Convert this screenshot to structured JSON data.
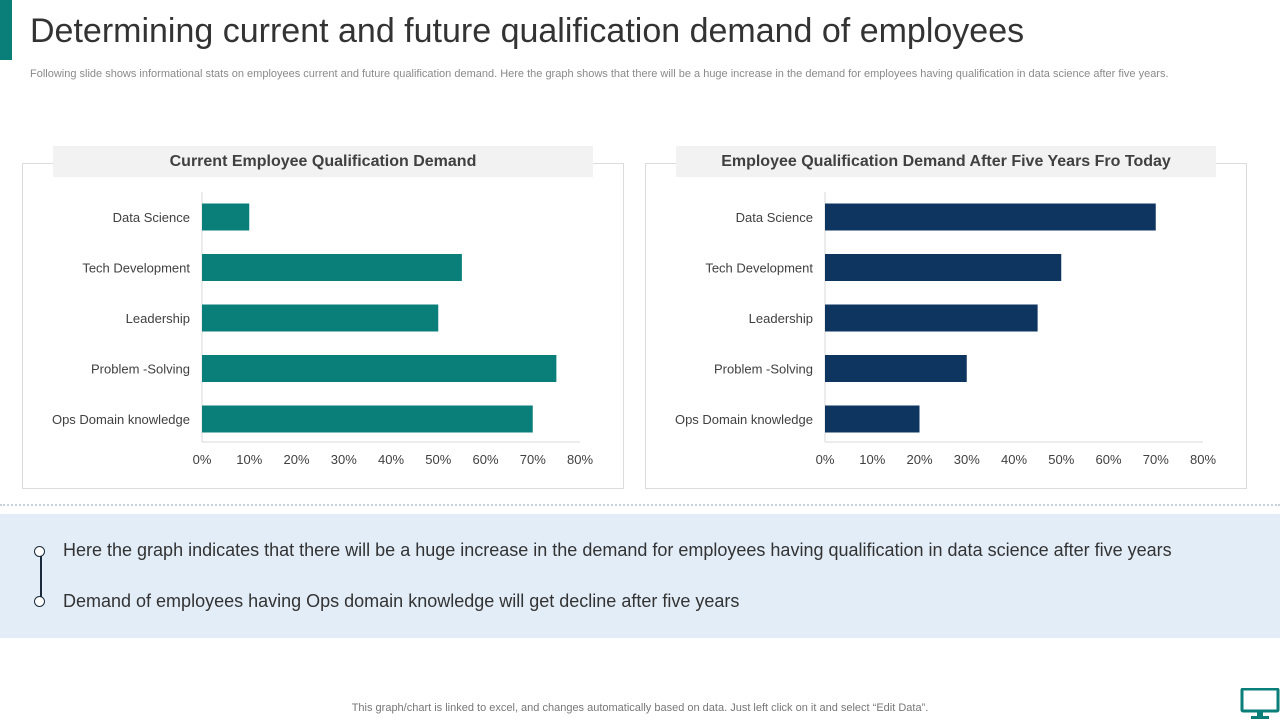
{
  "page": {
    "title": "Determining current and future qualification demand of employees",
    "subtitle": "Following slide shows informational stats on employees current and future qualification demand. Here the graph shows that there will be a huge increase in the demand for employees having qualification in data science after five years.",
    "footer": "This graph/chart is linked to excel, and changes automatically based on data. Just left click on it and select “Edit Data”.",
    "accent_color": "#0a7f7a",
    "icon": "monitor-icon"
  },
  "takeaways": [
    "Here the graph indicates that there will be a huge increase in the demand for employees having qualification in data science after five years",
    "Demand of employees having Ops domain knowledge will get decline after five years"
  ],
  "chart_data": [
    {
      "type": "bar",
      "orientation": "horizontal",
      "title": "Current Employee Qualification Demand",
      "categories": [
        "Data Science",
        "Tech Development",
        "Leadership",
        "Problem -Solving",
        "Ops Domain knowledge"
      ],
      "values": [
        10,
        55,
        50,
        75,
        70
      ],
      "xlim": [
        0,
        80
      ],
      "xticks": [
        "0%",
        "10%",
        "20%",
        "30%",
        "40%",
        "50%",
        "60%",
        "70%",
        "80%"
      ],
      "unit": "%",
      "color": "#0a7f7a",
      "grid": false
    },
    {
      "type": "bar",
      "orientation": "horizontal",
      "title": "Employee Qualification Demand After Five Years Fro Today",
      "categories": [
        "Data Science",
        "Tech Development",
        "Leadership",
        "Problem -Solving",
        "Ops Domain knowledge"
      ],
      "values": [
        70,
        50,
        45,
        30,
        20
      ],
      "xlim": [
        0,
        80
      ],
      "xticks": [
        "0%",
        "10%",
        "20%",
        "30%",
        "40%",
        "50%",
        "60%",
        "70%",
        "80%"
      ],
      "unit": "%",
      "color": "#0e3460",
      "grid": false
    }
  ]
}
